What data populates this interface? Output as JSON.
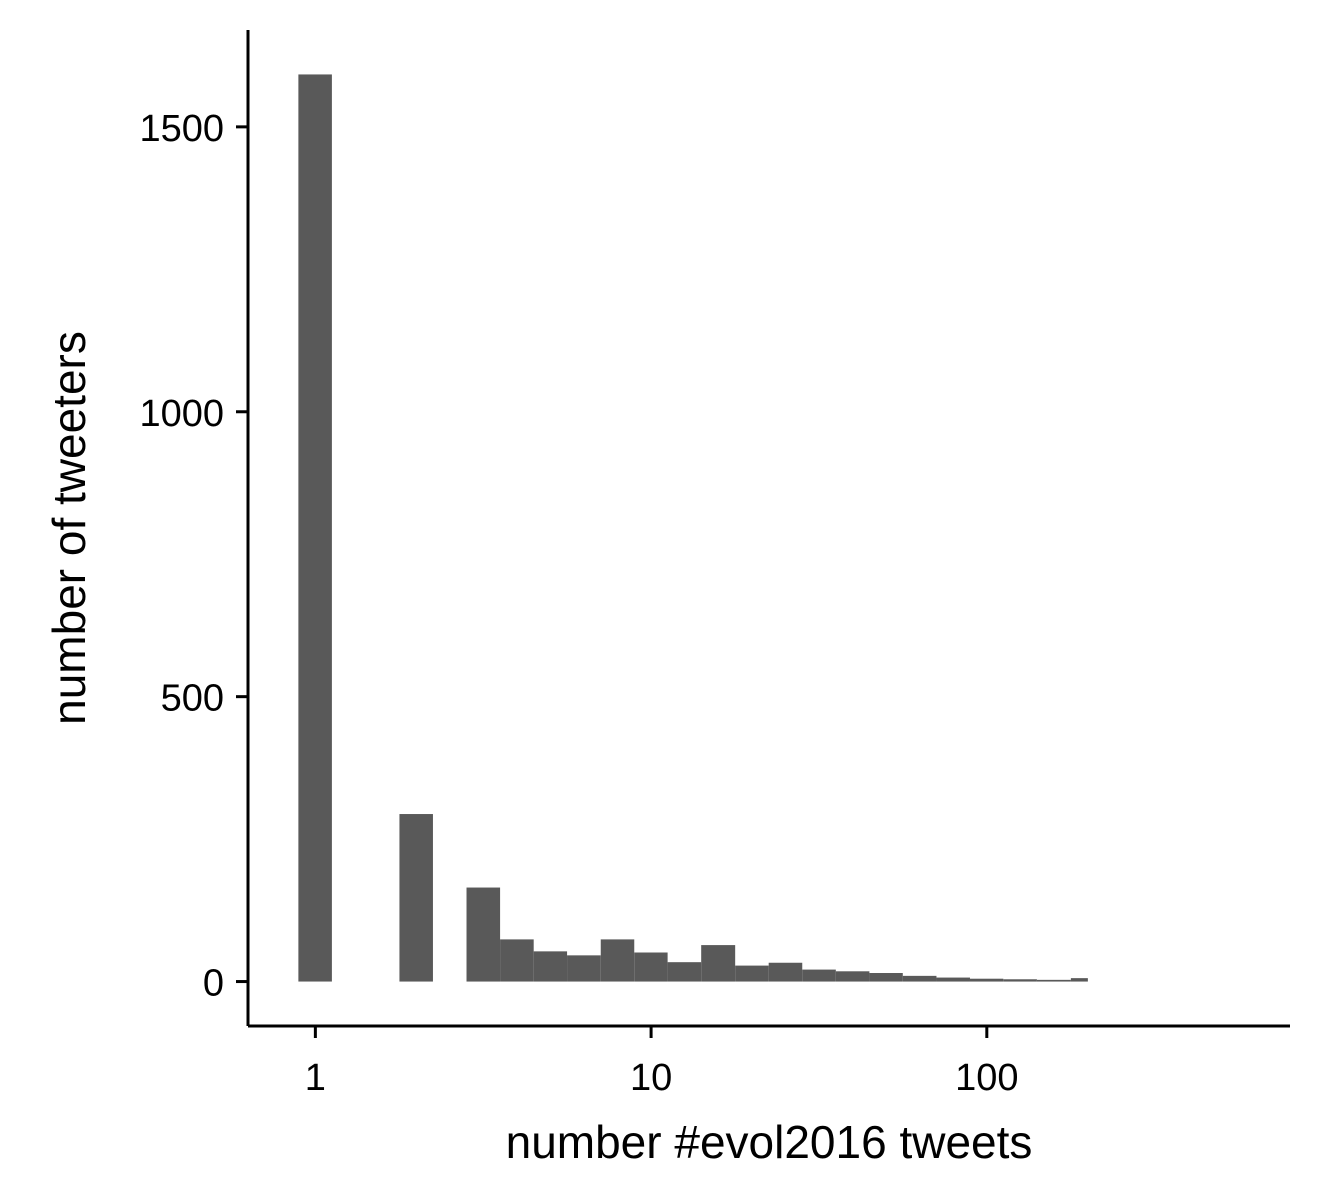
{
  "chart_data": {
    "type": "bar",
    "title": "",
    "xlabel": "number #evol2016 tweets",
    "ylabel": "number of tweeters",
    "x_scale": "log10",
    "xlim": [
      0.63,
      800
    ],
    "ylim": [
      -78,
      1670
    ],
    "x_ticks": [
      {
        "value": 1,
        "label": "1"
      },
      {
        "value": 10,
        "label": "10"
      },
      {
        "value": 100,
        "label": "100"
      }
    ],
    "y_ticks": [
      {
        "value": 0,
        "label": "0"
      },
      {
        "value": 500,
        "label": "500"
      },
      {
        "value": 1000,
        "label": "1000"
      },
      {
        "value": 1500,
        "label": "1500"
      }
    ],
    "bar_color": "#595959",
    "grid": false,
    "legend": "none",
    "bins": [
      {
        "x0": 0.89,
        "x1": 1.12,
        "count": 1592
      },
      {
        "x0": 1.78,
        "x1": 2.24,
        "count": 294
      },
      {
        "x0": 2.82,
        "x1": 3.55,
        "count": 165
      },
      {
        "x0": 3.55,
        "x1": 4.47,
        "count": 74
      },
      {
        "x0": 4.47,
        "x1": 5.62,
        "count": 53
      },
      {
        "x0": 5.62,
        "x1": 7.08,
        "count": 46
      },
      {
        "x0": 7.08,
        "x1": 8.91,
        "count": 74
      },
      {
        "x0": 8.91,
        "x1": 11.2,
        "count": 51
      },
      {
        "x0": 11.2,
        "x1": 14.1,
        "count": 34
      },
      {
        "x0": 14.1,
        "x1": 17.8,
        "count": 64
      },
      {
        "x0": 17.8,
        "x1": 22.4,
        "count": 28
      },
      {
        "x0": 22.4,
        "x1": 28.2,
        "count": 33
      },
      {
        "x0": 28.2,
        "x1": 35.5,
        "count": 21
      },
      {
        "x0": 35.5,
        "x1": 44.7,
        "count": 18
      },
      {
        "x0": 44.7,
        "x1": 56.2,
        "count": 15
      },
      {
        "x0": 56.2,
        "x1": 70.8,
        "count": 10
      },
      {
        "x0": 70.8,
        "x1": 89.1,
        "count": 7
      },
      {
        "x0": 89.1,
        "x1": 112,
        "count": 5
      },
      {
        "x0": 112,
        "x1": 141,
        "count": 4
      },
      {
        "x0": 141,
        "x1": 178,
        "count": 3
      },
      {
        "x0": 178,
        "x1": 200,
        "count": 6
      }
    ]
  }
}
